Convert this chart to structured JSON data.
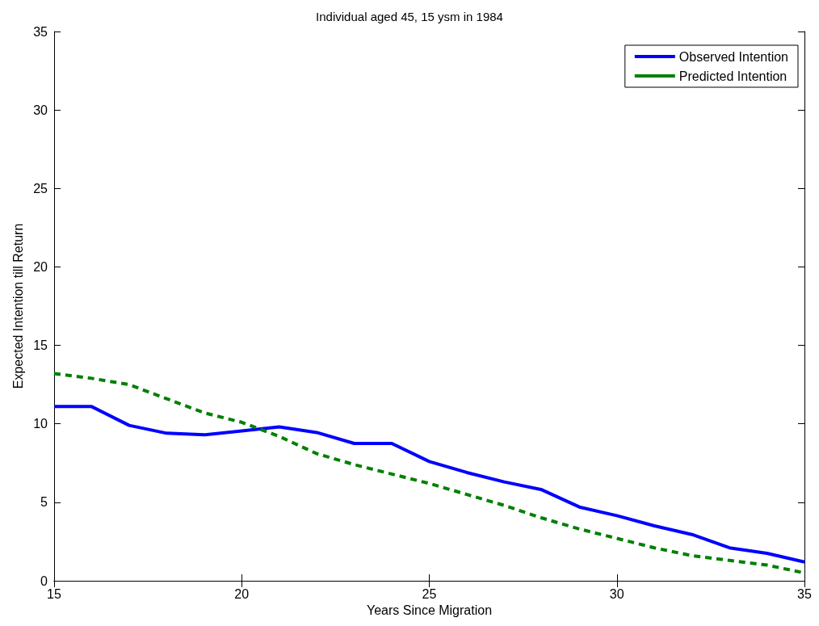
{
  "chart_data": {
    "type": "line",
    "title": "Individual aged 45, 15 ysm in 1984",
    "xlabel": "Years Since Migration",
    "ylabel": "Expected Intention till Return",
    "x": [
      15,
      16,
      17,
      18,
      19,
      20,
      21,
      22,
      23,
      24,
      25,
      26,
      27,
      28,
      29,
      30,
      31,
      32,
      33,
      34,
      35
    ],
    "series": [
      {
        "name": "Observed Intention",
        "color": "#0000ff",
        "line_style": "solid",
        "values": [
          11.1,
          11.1,
          9.9,
          9.4,
          9.3,
          9.55,
          9.8,
          9.45,
          8.75,
          8.75,
          7.6,
          6.9,
          6.3,
          5.8,
          4.7,
          4.15,
          3.5,
          2.95,
          2.1,
          1.75,
          1.2
        ]
      },
      {
        "name": "Predicted Intention",
        "color": "#008000",
        "line_style": "dashed",
        "values": [
          13.2,
          12.9,
          12.5,
          11.6,
          10.7,
          10.1,
          9.2,
          8.1,
          7.4,
          6.8,
          6.2,
          5.5,
          4.8,
          4.0,
          3.3,
          2.7,
          2.1,
          1.6,
          1.3,
          1.0,
          0.5
        ]
      }
    ],
    "xlim": [
      15,
      35
    ],
    "xticks": [
      15,
      20,
      25,
      30,
      35
    ],
    "ylim": [
      0,
      35
    ],
    "yticks": [
      0,
      5,
      10,
      15,
      20,
      25,
      30,
      35
    ],
    "grid": false,
    "legend": "top right",
    "marker": "none"
  }
}
